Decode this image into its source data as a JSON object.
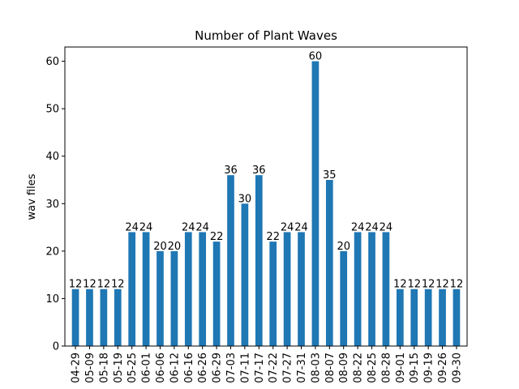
{
  "chart_data": {
    "type": "bar",
    "title": "Number of Plant Waves",
    "xlabel": "",
    "ylabel": "wav files",
    "ylim": [
      0,
      63
    ],
    "yticks": [
      0,
      10,
      20,
      30,
      40,
      50,
      60
    ],
    "categories": [
      "04-29",
      "05-09",
      "05-18",
      "05-19",
      "05-25",
      "06-01",
      "06-06",
      "06-12",
      "06-16",
      "06-26",
      "06-29",
      "07-03",
      "07-11",
      "07-17",
      "07-22",
      "07-27",
      "07-31",
      "08-03",
      "08-07",
      "08-09",
      "08-22",
      "08-25",
      "08-28",
      "09-01",
      "09-15",
      "09-19",
      "09-26",
      "09-30"
    ],
    "values": [
      12,
      12,
      12,
      12,
      24,
      24,
      20,
      20,
      24,
      24,
      22,
      36,
      30,
      36,
      22,
      24,
      24,
      60,
      35,
      20,
      24,
      24,
      24,
      12,
      12,
      12,
      12,
      12
    ],
    "bar_color": "#1f77b4",
    "grid": false,
    "value_labels": true
  }
}
